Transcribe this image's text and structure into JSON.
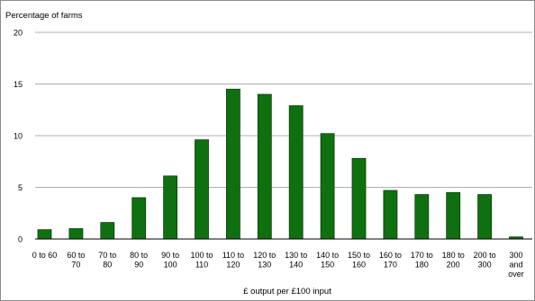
{
  "chart_data": {
    "type": "bar",
    "ylabel": "Percentage of farms",
    "xlabel": "£ output per £100 input",
    "ylim": [
      0,
      20
    ],
    "yticks": [
      0,
      5,
      10,
      15,
      20
    ],
    "grid": true,
    "bar_color": "#0f700f",
    "categories": [
      [
        "0 to 60"
      ],
      [
        "60 to",
        "70"
      ],
      [
        "70 to",
        "80"
      ],
      [
        "80 to",
        "90"
      ],
      [
        "90 to",
        "100"
      ],
      [
        "100 to",
        "110"
      ],
      [
        "110 to",
        "120"
      ],
      [
        "120 to",
        "130"
      ],
      [
        "130 to",
        "140"
      ],
      [
        "140 to",
        "150"
      ],
      [
        "150 to",
        "160"
      ],
      [
        "160 to",
        "170"
      ],
      [
        "170 to",
        "180"
      ],
      [
        "180 to",
        "200"
      ],
      [
        "200 to",
        "300"
      ],
      [
        "300",
        "and",
        "over"
      ]
    ],
    "values": [
      0.9,
      1.0,
      1.6,
      4.0,
      6.1,
      9.6,
      14.5,
      14.0,
      12.9,
      10.2,
      7.8,
      4.7,
      4.3,
      4.5,
      4.3,
      0.2
    ]
  }
}
